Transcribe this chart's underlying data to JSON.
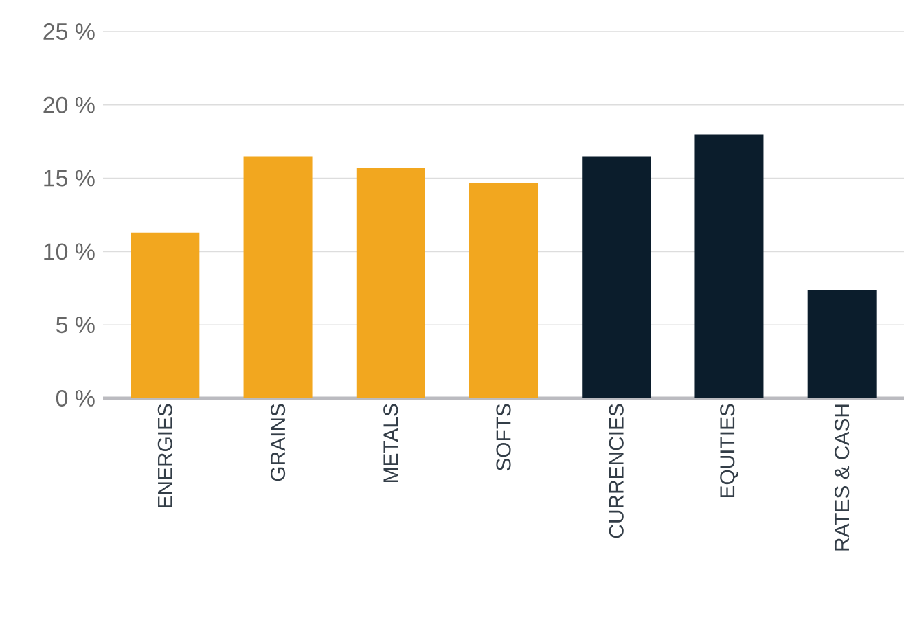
{
  "chart_data": {
    "type": "bar",
    "categories": [
      "ENERGIES",
      "GRAINS",
      "METALS",
      "SOFTS",
      "CURRENCIES",
      "EQUITIES",
      "RATES & CASH"
    ],
    "values": [
      11.3,
      16.5,
      15.7,
      14.7,
      16.5,
      18.0,
      7.4
    ],
    "colors": [
      "#f2a71f",
      "#f2a71f",
      "#f2a71f",
      "#f2a71f",
      "#0b1d2c",
      "#0b1d2c",
      "#0b1d2c"
    ],
    "ylim": [
      0,
      25
    ],
    "yticks": [
      {
        "value": 0,
        "label": "0 %"
      },
      {
        "value": 5,
        "label": "5 %"
      },
      {
        "value": 10,
        "label": "10 %"
      },
      {
        "value": 15,
        "label": "15 %"
      },
      {
        "value": 20,
        "label": "20 %"
      },
      {
        "value": 25,
        "label": "25 %"
      }
    ],
    "grid": "y"
  }
}
